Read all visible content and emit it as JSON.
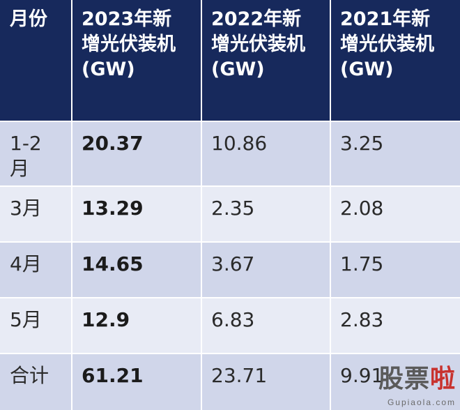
{
  "chart_data": {
    "type": "table",
    "columns": [
      "月份",
      "2023年新增光伏装机(GW)",
      "2022年新增光伏装机(GW)",
      "2021年新增光伏装机(GW)"
    ],
    "rows": [
      {
        "label": "1-2月",
        "values": [
          "20.37",
          "10.86",
          "3.25"
        ]
      },
      {
        "label": "3月",
        "values": [
          "13.29",
          "2.35",
          "2.08"
        ]
      },
      {
        "label": "4月",
        "values": [
          "14.65",
          "3.67",
          "1.75"
        ]
      },
      {
        "label": "5月",
        "values": [
          "12.9",
          "6.83",
          "2.83"
        ]
      },
      {
        "label": "合计",
        "values": [
          "61.21",
          "23.71",
          "9.91"
        ]
      }
    ]
  },
  "watermark": {
    "chinese_part1": "股票",
    "chinese_part2": "啦",
    "domain": "Gupiaola.com"
  }
}
